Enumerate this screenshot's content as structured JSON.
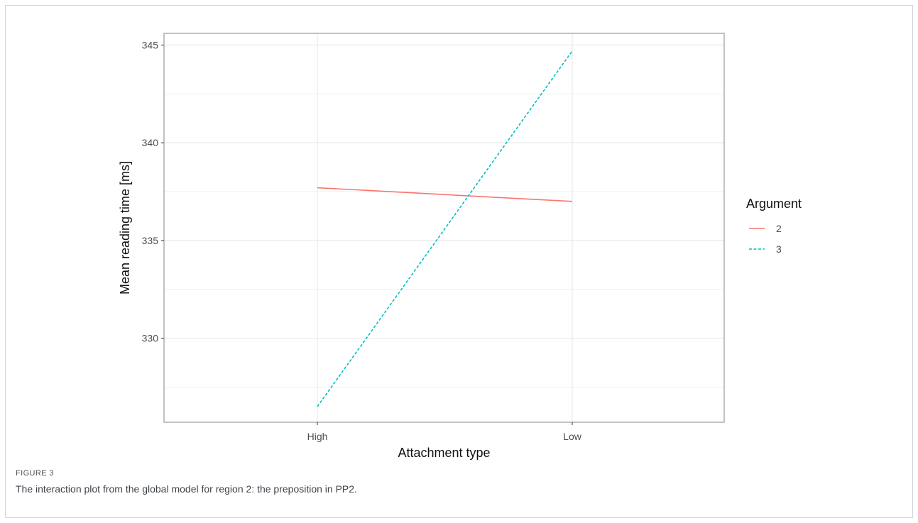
{
  "figure": {
    "label": "FIGURE 3",
    "caption": "The interaction plot from the global model for region 2: the preposition in PP2."
  },
  "colors": {
    "series_2": "#f8766d",
    "series_3": "#00bfc4",
    "grid": "#ebebeb",
    "panel_border": "#999999",
    "text": "#4d4d4d"
  },
  "chart_data": {
    "type": "line",
    "categories": [
      "High",
      "Low"
    ],
    "xlabel": "Attachment type",
    "ylabel": "Mean reading time [ms]",
    "ylim": [
      325.7,
      345.6
    ],
    "yticks": [
      330,
      335,
      340,
      345
    ],
    "grid": true,
    "legend": {
      "title": "Argument",
      "position": "right"
    },
    "series": [
      {
        "name": "2",
        "values": [
          337.7,
          337.0
        ],
        "linetype": "solid",
        "color": "#f8766d"
      },
      {
        "name": "3",
        "values": [
          326.5,
          344.7
        ],
        "linetype": "dashed",
        "color": "#00bfc4"
      }
    ]
  }
}
